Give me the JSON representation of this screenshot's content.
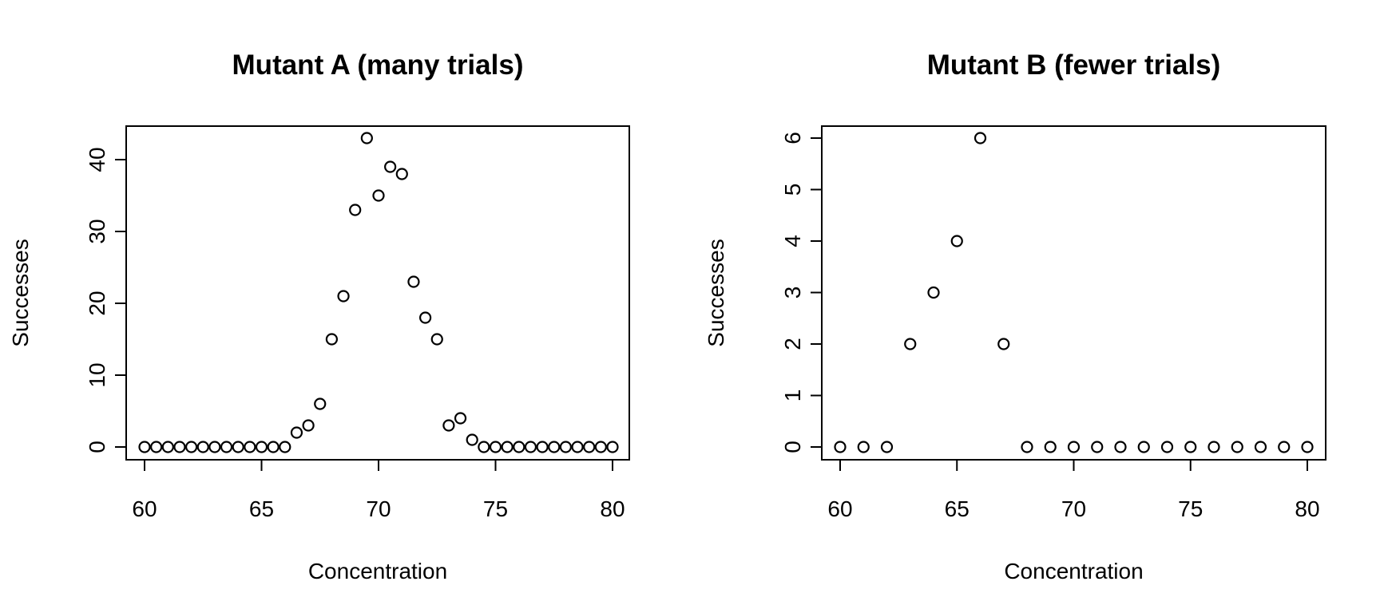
{
  "chart_data": [
    {
      "type": "scatter",
      "title": "Mutant A (many trials)",
      "xlabel": "Concentration",
      "ylabel": "Successes",
      "xlim": [
        60,
        80
      ],
      "ylim": [
        0,
        43
      ],
      "x_ticks": [
        60,
        65,
        70,
        75,
        80
      ],
      "y_ticks": [
        0,
        10,
        20,
        30,
        40
      ],
      "marker": "open-circle",
      "grid": false,
      "x": [
        60,
        60.5,
        61,
        61.5,
        62,
        62.5,
        63,
        63.5,
        64,
        64.5,
        65,
        65.5,
        66,
        66.5,
        67,
        67.5,
        68,
        68.5,
        69,
        69.5,
        70,
        70.5,
        71,
        71.5,
        72,
        72.5,
        73,
        73.5,
        74,
        74.5,
        75,
        75.5,
        76,
        76.5,
        77,
        77.5,
        78,
        78.5,
        79,
        79.5,
        80
      ],
      "y": [
        0,
        0,
        0,
        0,
        0,
        0,
        0,
        0,
        0,
        0,
        0,
        0,
        0,
        2,
        3,
        6,
        15,
        21,
        33,
        43,
        35,
        39,
        38,
        23,
        18,
        15,
        3,
        4,
        1,
        0,
        0,
        0,
        0,
        0,
        0,
        0,
        0,
        0,
        0,
        0,
        0
      ]
    },
    {
      "type": "scatter",
      "title": "Mutant B (fewer trials)",
      "xlabel": "Concentration",
      "ylabel": "Successes",
      "xlim": [
        60,
        80
      ],
      "ylim": [
        0,
        6
      ],
      "x_ticks": [
        60,
        65,
        70,
        75,
        80
      ],
      "y_ticks": [
        0,
        1,
        2,
        3,
        4,
        5,
        6
      ],
      "marker": "open-circle",
      "grid": false,
      "x": [
        60,
        61,
        62,
        63,
        64,
        65,
        66,
        67,
        68,
        69,
        70,
        71,
        72,
        73,
        74,
        75,
        76,
        77,
        78,
        79,
        80
      ],
      "y": [
        0,
        0,
        0,
        2,
        3,
        4,
        6,
        2,
        0,
        0,
        0,
        0,
        0,
        0,
        0,
        0,
        0,
        0,
        0,
        0,
        0
      ]
    }
  ]
}
